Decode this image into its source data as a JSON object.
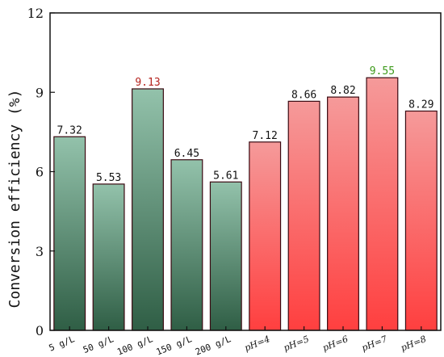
{
  "chart_data": {
    "type": "bar",
    "ylabel": "Conversion efficiency (%)",
    "ylim": [
      0,
      12
    ],
    "yticks": [
      0,
      3,
      6,
      9,
      12
    ],
    "grid": false,
    "categories": [
      "5 g/L",
      "50 g/L",
      "100 g/L",
      "150 g/L",
      "200 g/L",
      "pH=4",
      "pH=5",
      "pH=6",
      "pH=7",
      "pH=8"
    ],
    "values": [
      7.32,
      5.53,
      9.13,
      6.45,
      5.61,
      7.12,
      8.66,
      8.82,
      9.55,
      8.29
    ],
    "value_labels": [
      "7.32",
      "5.53",
      "9.13",
      "6.45",
      "5.61",
      "7.12",
      "8.66",
      "8.82",
      "9.55",
      "8.29"
    ],
    "groups": [
      {
        "categories": [
          "5 g/L",
          "50 g/L",
          "100 g/L",
          "150 g/L",
          "200 g/L"
        ],
        "color_top": "#93c2ab",
        "color_bottom": "#2f5e45"
      },
      {
        "categories": [
          "pH=4",
          "pH=5",
          "pH=6",
          "pH=7",
          "pH=8"
        ],
        "color_top": "#f59a9a",
        "color_bottom": "#ff3f3f"
      }
    ],
    "highlight_colors": {
      "9.13": "#b5231e",
      "9.55": "#3c9a1a"
    },
    "default_label_color": "#111111",
    "bar_edge_color": "#3a0a12"
  }
}
